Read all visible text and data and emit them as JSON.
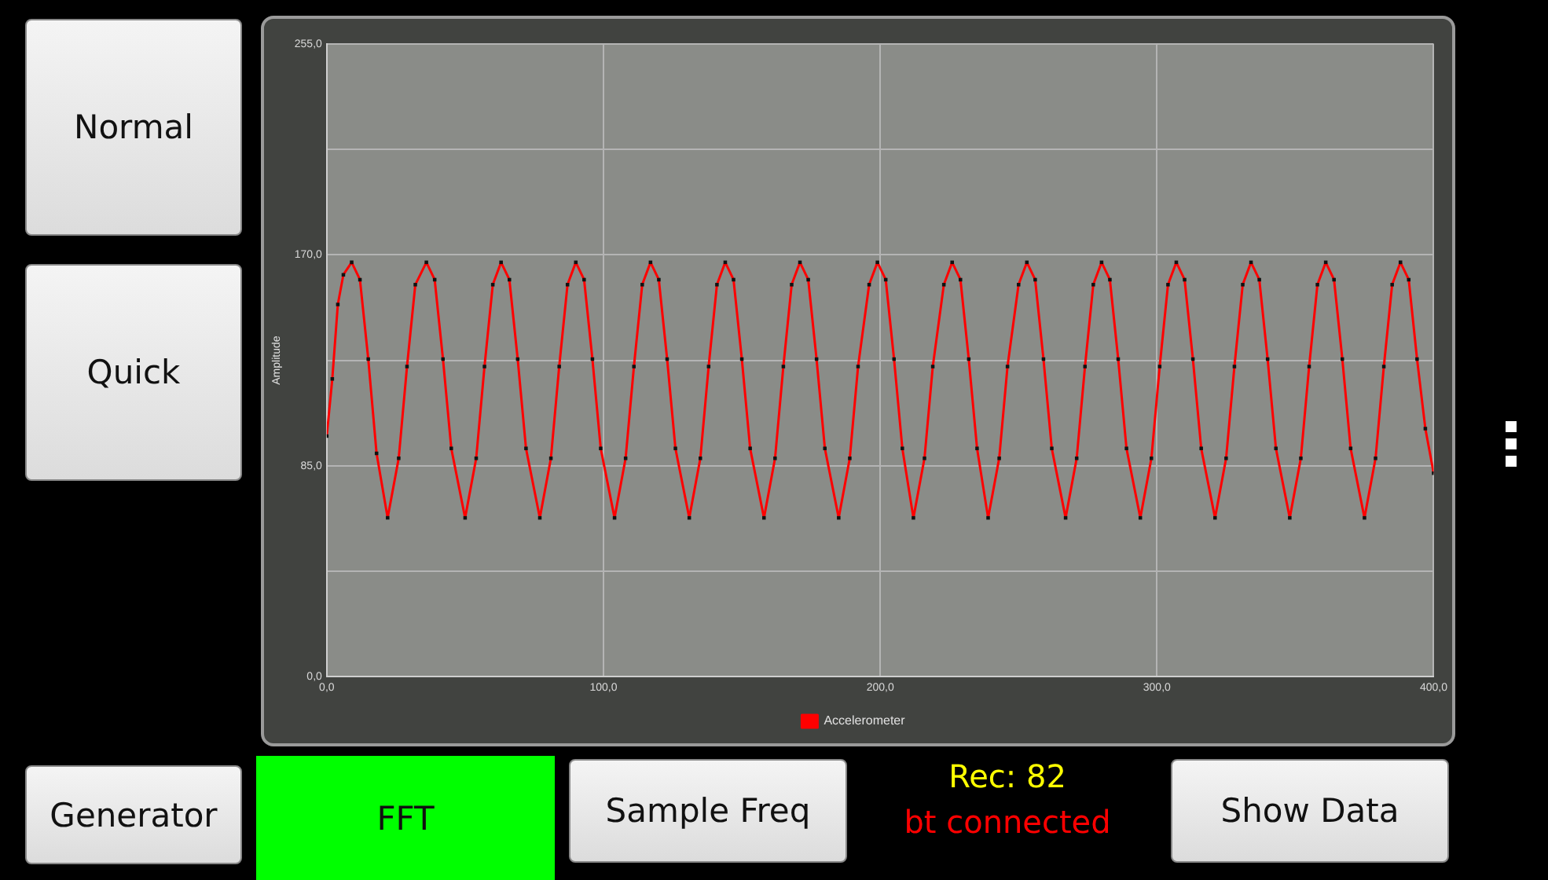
{
  "chart_data": {
    "type": "line",
    "ylabel": "Amplitude",
    "legend": "bottom",
    "grid": true,
    "marker": "square",
    "line_style": "solid",
    "xlim": [
      0,
      400
    ],
    "xticks": [
      {
        "value": 0,
        "label": "0,0"
      },
      {
        "value": 100,
        "label": "100,0"
      },
      {
        "value": 200,
        "label": "200,0"
      },
      {
        "value": 300,
        "label": "300,0"
      },
      {
        "value": 400,
        "label": "400,0"
      }
    ],
    "ylim": [
      0,
      255
    ],
    "yticks": [
      {
        "value": 0,
        "label": "0,0"
      },
      {
        "value": 42.5,
        "label": null
      },
      {
        "value": 85,
        "label": "85,0"
      },
      {
        "value": 127.5,
        "label": null
      },
      {
        "value": 170,
        "label": "170,0"
      },
      {
        "value": 212.5,
        "label": null
      },
      {
        "value": 255,
        "label": "255,0"
      }
    ],
    "series": [
      {
        "name": "Accelerometer",
        "color": "#ff0000",
        "x": [
          0,
          2,
          4,
          6,
          9,
          12,
          15,
          18,
          22,
          26,
          29,
          32,
          36,
          39,
          42,
          45,
          50,
          54,
          57,
          60,
          63,
          66,
          69,
          72,
          77,
          81,
          84,
          87,
          90,
          93,
          96,
          99,
          104,
          108,
          111,
          114,
          117,
          120,
          123,
          126,
          131,
          135,
          138,
          141,
          144,
          147,
          150,
          153,
          158,
          162,
          165,
          168,
          171,
          174,
          177,
          180,
          185,
          189,
          192,
          196,
          199,
          202,
          205,
          208,
          212,
          216,
          219,
          223,
          226,
          229,
          232,
          235,
          239,
          243,
          246,
          250,
          253,
          256,
          259,
          262,
          267,
          271,
          274,
          277,
          280,
          283,
          286,
          289,
          294,
          298,
          301,
          304,
          307,
          310,
          313,
          316,
          321,
          325,
          328,
          331,
          334,
          337,
          340,
          343,
          348,
          352,
          355,
          358,
          361,
          364,
          367,
          370,
          375,
          379,
          382,
          385,
          388,
          391,
          394,
          397,
          400
        ],
        "values": [
          97,
          120,
          150,
          162,
          167,
          160,
          128,
          90,
          64,
          88,
          125,
          158,
          167,
          160,
          128,
          92,
          64,
          88,
          125,
          158,
          167,
          160,
          128,
          92,
          64,
          88,
          125,
          158,
          167,
          160,
          128,
          92,
          64,
          88,
          125,
          158,
          167,
          160,
          128,
          92,
          64,
          88,
          125,
          158,
          167,
          160,
          128,
          92,
          64,
          88,
          125,
          158,
          167,
          160,
          128,
          92,
          64,
          88,
          125,
          158,
          167,
          160,
          128,
          92,
          64,
          88,
          125,
          158,
          167,
          160,
          128,
          92,
          64,
          88,
          125,
          158,
          167,
          160,
          128,
          92,
          64,
          88,
          125,
          158,
          167,
          160,
          128,
          92,
          64,
          88,
          125,
          158,
          167,
          160,
          128,
          92,
          64,
          88,
          125,
          158,
          167,
          160,
          128,
          92,
          64,
          88,
          125,
          158,
          167,
          160,
          128,
          92,
          64,
          88,
          125,
          158,
          167,
          160,
          128,
          100,
          82
        ]
      }
    ],
    "annotations": [
      "Normal",
      "Quick",
      "Generator",
      "FFT",
      "Sample Freq",
      "Rec: 82",
      "bt connected",
      "Show Data"
    ]
  }
}
